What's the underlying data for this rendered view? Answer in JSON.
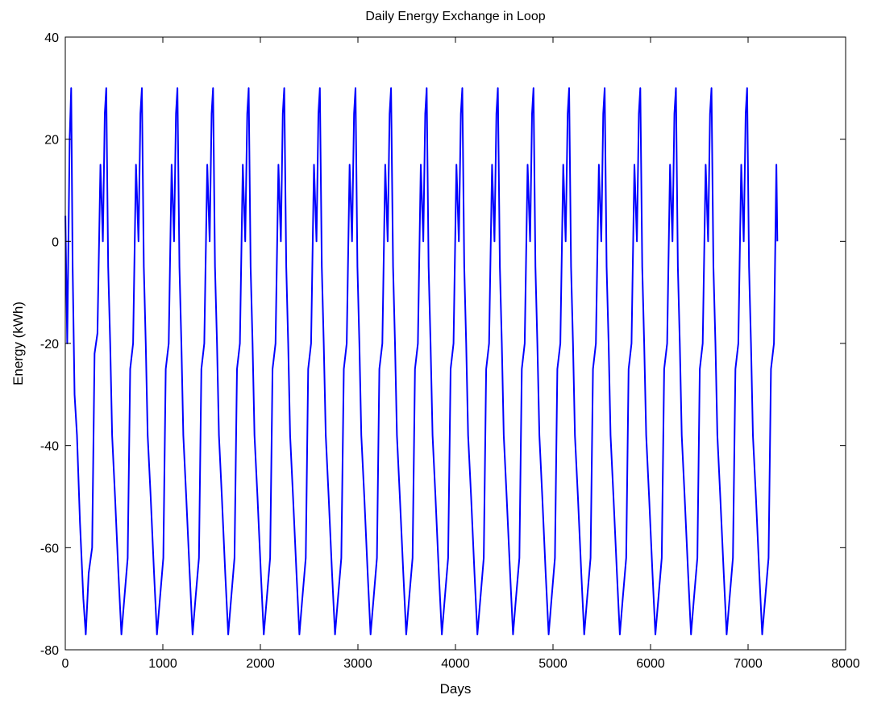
{
  "chart_data": {
    "type": "line",
    "title": "Daily Energy Exchange in Loop",
    "xlabel": "Days",
    "ylabel": "Energy (kWh)",
    "xlim": [
      0,
      8000
    ],
    "ylim": [
      -80,
      40
    ],
    "xticks": [
      0,
      1000,
      2000,
      3000,
      4000,
      5000,
      6000,
      7000,
      8000
    ],
    "yticks": [
      -80,
      -60,
      -40,
      -20,
      0,
      20,
      40
    ],
    "grid": false,
    "line_color": "#0000ff",
    "series": [
      {
        "x": [
          1,
          20,
          45,
          60,
          75,
          95,
          120,
          150,
          185,
          210,
          240,
          275,
          300,
          330,
          360,
          385,
          405,
          420,
          440,
          460,
          480,
          510,
          545,
          575,
          605,
          640,
          665,
          695,
          725,
          750,
          770,
          785,
          805,
          825,
          845,
          875,
          910,
          940,
          970,
          1005,
          1030,
          1060,
          1090,
          1115,
          1135,
          1150,
          1170,
          1190,
          1210,
          1240,
          1275,
          1305,
          1335,
          1370,
          1395,
          1425,
          1455,
          1480,
          1500,
          1515,
          1535,
          1555,
          1575,
          1605,
          1640,
          1670,
          1700,
          1735,
          1760,
          1790,
          1820,
          1845,
          1865,
          1880,
          1900,
          1920,
          1940,
          1970,
          2005,
          2035,
          2065,
          2100,
          2125,
          2155,
          2185,
          2210,
          2230,
          2245,
          2265,
          2285,
          2305,
          2335,
          2370,
          2400,
          2430,
          2465,
          2490,
          2520,
          2550,
          2575,
          2595,
          2610,
          2630,
          2650,
          2670,
          2700,
          2735,
          2765,
          2795,
          2830,
          2855,
          2885,
          2915,
          2940,
          2960,
          2975,
          2995,
          3015,
          3035,
          3065,
          3100,
          3130,
          3160,
          3195,
          3220,
          3250,
          3280,
          3305,
          3325,
          3340,
          3360,
          3380,
          3400,
          3430,
          3465,
          3495,
          3525,
          3560,
          3585,
          3615,
          3645,
          3670,
          3690,
          3705,
          3725,
          3745,
          3765,
          3795,
          3830,
          3860,
          3890,
          3925,
          3950,
          3980,
          4010,
          4035,
          4055,
          4070,
          4090,
          4110,
          4130,
          4160,
          4195,
          4225,
          4255,
          4290,
          4315,
          4345,
          4375,
          4400,
          4420,
          4435,
          4455,
          4475,
          4495,
          4525,
          4560,
          4590,
          4620,
          4655,
          4680,
          4710,
          4740,
          4765,
          4785,
          4800,
          4820,
          4840,
          4860,
          4890,
          4925,
          4955,
          4985,
          5020,
          5045,
          5075,
          5105,
          5130,
          5150,
          5165,
          5185,
          5205,
          5225,
          5255,
          5290,
          5320,
          5350,
          5385,
          5410,
          5440,
          5470,
          5495,
          5515,
          5530,
          5550,
          5570,
          5590,
          5620,
          5655,
          5685,
          5715,
          5750,
          5775,
          5805,
          5835,
          5860,
          5880,
          5895,
          5915,
          5935,
          5955,
          5985,
          6020,
          6050,
          6080,
          6115,
          6140,
          6170,
          6200,
          6225,
          6245,
          6260,
          6280,
          6300,
          6320,
          6350,
          6385,
          6415,
          6445,
          6480,
          6505,
          6535,
          6565,
          6590,
          6610,
          6625,
          6645,
          6665,
          6685,
          6715,
          6750,
          6780,
          6810,
          6845,
          6870,
          6900,
          6930,
          6955,
          6975,
          6990,
          7010,
          7030,
          7050,
          7080,
          7115,
          7145,
          7175,
          7210,
          7235,
          7265,
          7290,
          7300
        ],
        "y": [
          5,
          -20,
          20,
          30,
          -5,
          -30,
          -38,
          -55,
          -70,
          -77,
          -65,
          -60,
          -22,
          -18,
          15,
          0,
          25,
          30,
          -5,
          -20,
          -38,
          -50,
          -65,
          -77,
          -70,
          -62,
          -25,
          -20,
          15,
          0,
          25,
          30,
          -5,
          -20,
          -38,
          -50,
          -65,
          -77,
          -70,
          -62,
          -25,
          -20,
          15,
          0,
          25,
          30,
          -5,
          -20,
          -38,
          -50,
          -65,
          -77,
          -70,
          -62,
          -25,
          -20,
          15,
          0,
          25,
          30,
          -5,
          -20,
          -38,
          -50,
          -65,
          -77,
          -70,
          -62,
          -25,
          -20,
          15,
          0,
          25,
          30,
          -5,
          -20,
          -38,
          -50,
          -65,
          -77,
          -70,
          -62,
          -25,
          -20,
          15,
          0,
          25,
          30,
          -5,
          -20,
          -38,
          -50,
          -65,
          -77,
          -70,
          -62,
          -25,
          -20,
          15,
          0,
          25,
          30,
          -5,
          -20,
          -38,
          -50,
          -65,
          -77,
          -70,
          -62,
          -25,
          -20,
          15,
          0,
          25,
          30,
          -5,
          -20,
          -38,
          -50,
          -65,
          -77,
          -70,
          -62,
          -25,
          -20,
          15,
          0,
          25,
          30,
          -5,
          -20,
          -38,
          -50,
          -65,
          -77,
          -70,
          -62,
          -25,
          -20,
          15,
          0,
          25,
          30,
          -5,
          -20,
          -38,
          -50,
          -65,
          -77,
          -70,
          -62,
          -25,
          -20,
          15,
          0,
          25,
          30,
          -5,
          -20,
          -38,
          -50,
          -65,
          -77,
          -70,
          -62,
          -25,
          -20,
          15,
          0,
          25,
          30,
          -5,
          -20,
          -38,
          -50,
          -65,
          -77,
          -70,
          -62,
          -25,
          -20,
          15,
          0,
          25,
          30,
          -5,
          -20,
          -38,
          -50,
          -65,
          -77,
          -70,
          -62,
          -25,
          -20,
          15,
          0,
          25,
          30,
          -5,
          -20,
          -38,
          -50,
          -65,
          -77,
          -70,
          -62,
          -25,
          -20,
          15,
          0,
          25,
          30,
          -5,
          -20,
          -38,
          -50,
          -65,
          -77,
          -70,
          -62,
          -25,
          -20,
          15,
          0,
          25,
          30,
          -5,
          -20,
          -38,
          -50,
          -65,
          -77,
          -70,
          -62,
          -25,
          -20,
          15,
          0,
          25,
          30,
          -5,
          -20,
          -38,
          -50,
          -65,
          -77,
          -70,
          -62,
          -25,
          -20,
          15,
          0,
          25,
          30,
          -5,
          -20,
          -38,
          -50,
          -65,
          -77,
          -70,
          -62,
          -25,
          -20,
          15,
          0,
          25,
          30,
          -5,
          -20,
          -38,
          -50,
          -65,
          -77,
          -70,
          -62,
          -25,
          -20,
          15,
          0
        ]
      }
    ]
  }
}
